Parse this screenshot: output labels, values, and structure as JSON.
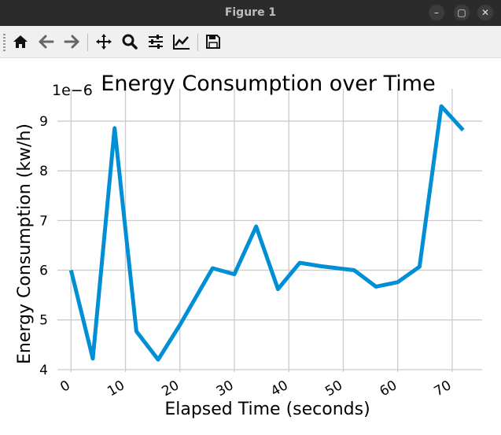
{
  "window": {
    "title": "Figure 1",
    "controls": {
      "minimize": "–",
      "maximize": "▢",
      "close": "✕"
    }
  },
  "toolbar": {
    "buttons": [
      {
        "name": "home-button",
        "icon": "home-icon"
      },
      {
        "name": "back-button",
        "icon": "arrow-left-icon"
      },
      {
        "name": "forward-button",
        "icon": "arrow-right-icon"
      },
      {
        "name": "pan-button",
        "icon": "move-icon"
      },
      {
        "name": "zoom-button",
        "icon": "magnifier-icon"
      },
      {
        "name": "configure-subplots-button",
        "icon": "sliders-icon"
      },
      {
        "name": "edit-axes-button",
        "icon": "line-chart-icon"
      },
      {
        "name": "save-button",
        "icon": "floppy-disk-icon"
      }
    ]
  },
  "chart_data": {
    "type": "line",
    "title": "Energy Consumption over Time",
    "xlabel": "Elapsed Time (seconds)",
    "ylabel": "Energy Consumption (kw/h)",
    "y_offset_label": "1e−6",
    "x": [
      0,
      4,
      8,
      12,
      16,
      20,
      26,
      30,
      34,
      38,
      42,
      46,
      52,
      56,
      60,
      64,
      68,
      72
    ],
    "values": [
      6.0,
      4.22,
      8.86,
      4.77,
      4.2,
      4.9,
      6.04,
      5.92,
      6.88,
      5.62,
      6.15,
      6.08,
      6.0,
      5.67,
      5.76,
      6.07,
      9.3,
      8.82
    ],
    "xlim": [
      -2.5,
      75.5
    ],
    "ylim": [
      3.95,
      9.65
    ],
    "xticks": [
      0,
      10,
      20,
      30,
      40,
      50,
      60,
      70
    ],
    "xtick_labels": [
      "0",
      "10",
      "20",
      "30",
      "40",
      "50",
      "60",
      "70"
    ],
    "yticks": [
      4,
      5,
      6,
      7,
      8,
      9
    ],
    "ytick_labels": [
      "4",
      "5",
      "6",
      "7",
      "8",
      "9"
    ],
    "grid": true,
    "line_color": "#008fd5"
  }
}
